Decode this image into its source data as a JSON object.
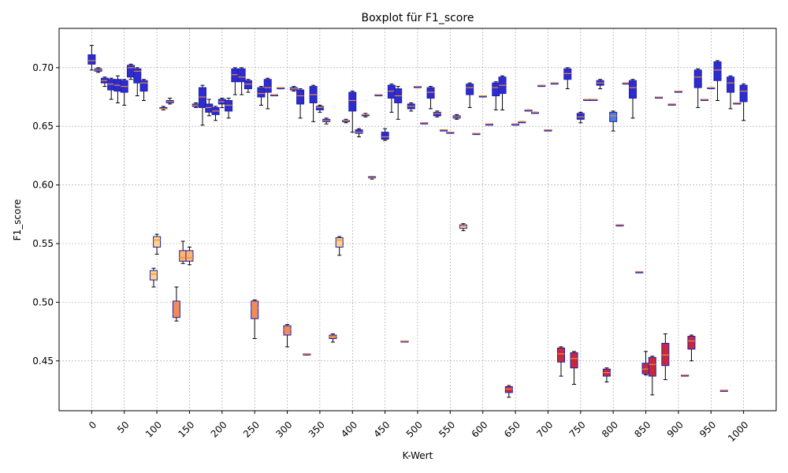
{
  "chart_data": {
    "type": "boxplot",
    "title": "Boxplot für F1_score",
    "xlabel": "K-Wert",
    "ylabel": "F1_score",
    "xlim": [
      -50,
      1050
    ],
    "ylim": [
      0.4075,
      0.7335
    ],
    "grid": true,
    "x_ticks": [
      "0",
      "50",
      "100",
      "150",
      "200",
      "250",
      "300",
      "350",
      "400",
      "450",
      "500",
      "550",
      "600",
      "650",
      "700",
      "750",
      "800",
      "850",
      "900",
      "950",
      "1000"
    ],
    "y_ticks": [
      "0.45",
      "0.50",
      "0.55",
      "0.60",
      "0.65",
      "0.70"
    ],
    "boxes": [
      {
        "k": 0,
        "wl": 0.698,
        "q1": 0.703,
        "med": 0.706,
        "q3": 0.711,
        "wh": 0.719,
        "color": "#2c2ccf"
      },
      {
        "k": 10,
        "wl": 0.696,
        "q1": 0.697,
        "med": 0.698,
        "q3": 0.699,
        "wh": 0.7,
        "color": "#2c2ccf"
      },
      {
        "k": 20,
        "wl": 0.684,
        "q1": 0.687,
        "med": 0.689,
        "q3": 0.691,
        "wh": 0.692,
        "color": "#2c2ccf"
      },
      {
        "k": 30,
        "wl": 0.673,
        "q1": 0.681,
        "med": 0.686,
        "q3": 0.69,
        "wh": 0.691,
        "color": "#2c2ccf"
      },
      {
        "k": 40,
        "wl": 0.67,
        "q1": 0.68,
        "med": 0.685,
        "q3": 0.69,
        "wh": 0.693,
        "color": "#2c2ccf"
      },
      {
        "k": 50,
        "wl": 0.668,
        "q1": 0.679,
        "med": 0.684,
        "q3": 0.689,
        "wh": 0.69,
        "color": "#2c2ccf"
      },
      {
        "k": 60,
        "wl": 0.69,
        "q1": 0.692,
        "med": 0.7,
        "q3": 0.702,
        "wh": 0.703,
        "color": "#2c2ccf"
      },
      {
        "k": 70,
        "wl": 0.676,
        "q1": 0.687,
        "med": 0.697,
        "q3": 0.699,
        "wh": 0.7,
        "color": "#2c2ccf"
      },
      {
        "k": 80,
        "wl": 0.672,
        "q1": 0.68,
        "med": 0.687,
        "q3": 0.689,
        "wh": 0.69,
        "color": "#2c2ccf"
      },
      {
        "k": 95,
        "wl": 0.513,
        "q1": 0.519,
        "med": 0.524,
        "q3": 0.527,
        "wh": 0.529,
        "color": "#ffd28a"
      },
      {
        "k": 100,
        "wl": 0.541,
        "q1": 0.547,
        "med": 0.553,
        "q3": 0.556,
        "wh": 0.558,
        "color": "#ffd28a"
      },
      {
        "k": 110,
        "wl": 0.664,
        "q1": 0.665,
        "med": 0.665,
        "q3": 0.666,
        "wh": 0.667,
        "color": "#2c2ccf"
      },
      {
        "k": 120,
        "wl": 0.669,
        "q1": 0.67,
        "med": 0.671,
        "q3": 0.672,
        "wh": 0.674,
        "color": "#2c2ccf"
      },
      {
        "k": 130,
        "wl": 0.484,
        "q1": 0.487,
        "med": 0.49,
        "q3": 0.501,
        "wh": 0.513,
        "color": "#f28b5b"
      },
      {
        "k": 140,
        "wl": 0.533,
        "q1": 0.535,
        "med": 0.538,
        "q3": 0.544,
        "wh": 0.552,
        "color": "#ffb470"
      },
      {
        "k": 150,
        "wl": 0.532,
        "q1": 0.535,
        "med": 0.538,
        "q3": 0.544,
        "wh": 0.547,
        "color": "#ffb470"
      },
      {
        "k": 160,
        "wl": 0.666,
        "q1": 0.667,
        "med": 0.668,
        "q3": 0.669,
        "wh": 0.67,
        "color": "#2c2ccf"
      },
      {
        "k": 170,
        "wl": 0.651,
        "q1": 0.666,
        "med": 0.675,
        "q3": 0.683,
        "wh": 0.685,
        "color": "#2c2ccf"
      },
      {
        "k": 180,
        "wl": 0.659,
        "q1": 0.662,
        "med": 0.666,
        "q3": 0.669,
        "wh": 0.673,
        "color": "#2c2ccf"
      },
      {
        "k": 190,
        "wl": 0.655,
        "q1": 0.66,
        "med": 0.663,
        "q3": 0.666,
        "wh": 0.667,
        "color": "#2c2ccf"
      },
      {
        "k": 200,
        "wl": 0.666,
        "q1": 0.669,
        "med": 0.671,
        "q3": 0.673,
        "wh": 0.674,
        "color": "#2c2ccf"
      },
      {
        "k": 210,
        "wl": 0.657,
        "q1": 0.663,
        "med": 0.668,
        "q3": 0.672,
        "wh": 0.674,
        "color": "#2c2ccf"
      },
      {
        "k": 220,
        "wl": 0.677,
        "q1": 0.688,
        "med": 0.694,
        "q3": 0.699,
        "wh": 0.7,
        "color": "#2c2ccf"
      },
      {
        "k": 230,
        "wl": 0.677,
        "q1": 0.688,
        "med": 0.692,
        "q3": 0.699,
        "wh": 0.7,
        "color": "#2c2ccf"
      },
      {
        "k": 240,
        "wl": 0.679,
        "q1": 0.682,
        "med": 0.686,
        "q3": 0.689,
        "wh": 0.69,
        "color": "#2c2ccf"
      },
      {
        "k": 250,
        "wl": 0.469,
        "q1": 0.486,
        "med": 0.495,
        "q3": 0.501,
        "wh": 0.502,
        "color": "#f28b5b"
      },
      {
        "k": 260,
        "wl": 0.668,
        "q1": 0.675,
        "med": 0.678,
        "q3": 0.683,
        "wh": 0.684,
        "color": "#2c2ccf"
      },
      {
        "k": 270,
        "wl": 0.665,
        "q1": 0.679,
        "med": 0.683,
        "q3": 0.69,
        "wh": 0.691,
        "color": "#2c2ccf"
      },
      {
        "k": 280,
        "wl": 0.676,
        "q1": 0.676,
        "med": 0.677,
        "q3": 0.677,
        "wh": 0.677,
        "color": "#2c2ccf"
      },
      {
        "k": 290,
        "wl": 0.682,
        "q1": 0.682,
        "med": 0.683,
        "q3": 0.683,
        "wh": 0.683,
        "color": "#2c2ccf"
      },
      {
        "k": 300,
        "wl": 0.462,
        "q1": 0.472,
        "med": 0.477,
        "q3": 0.48,
        "wh": 0.481,
        "color": "#f28b5b"
      },
      {
        "k": 310,
        "wl": 0.68,
        "q1": 0.681,
        "med": 0.682,
        "q3": 0.683,
        "wh": 0.684,
        "color": "#2c2ccf"
      },
      {
        "k": 320,
        "wl": 0.657,
        "q1": 0.669,
        "med": 0.676,
        "q3": 0.681,
        "wh": 0.682,
        "color": "#2c2ccf"
      },
      {
        "k": 330,
        "wl": 0.455,
        "q1": 0.455,
        "med": 0.456,
        "q3": 0.456,
        "wh": 0.456,
        "color": "#f28b5b"
      },
      {
        "k": 340,
        "wl": 0.654,
        "q1": 0.67,
        "med": 0.677,
        "q3": 0.684,
        "wh": 0.685,
        "color": "#2c2ccf"
      },
      {
        "k": 350,
        "wl": 0.662,
        "q1": 0.664,
        "med": 0.666,
        "q3": 0.667,
        "wh": 0.668,
        "color": "#2c2ccf"
      },
      {
        "k": 360,
        "wl": 0.652,
        "q1": 0.654,
        "med": 0.655,
        "q3": 0.656,
        "wh": 0.657,
        "color": "#2c2ccf"
      },
      {
        "k": 370,
        "wl": 0.466,
        "q1": 0.469,
        "med": 0.471,
        "q3": 0.472,
        "wh": 0.473,
        "color": "#f28b5b"
      },
      {
        "k": 380,
        "wl": 0.54,
        "q1": 0.547,
        "med": 0.553,
        "q3": 0.555,
        "wh": 0.556,
        "color": "#ffd28a"
      },
      {
        "k": 390,
        "wl": 0.653,
        "q1": 0.654,
        "med": 0.655,
        "q3": 0.655,
        "wh": 0.656,
        "color": "#2c2ccf"
      },
      {
        "k": 400,
        "wl": 0.645,
        "q1": 0.663,
        "med": 0.672,
        "q3": 0.679,
        "wh": 0.68,
        "color": "#2c2ccf"
      },
      {
        "k": 410,
        "wl": 0.641,
        "q1": 0.644,
        "med": 0.645,
        "q3": 0.647,
        "wh": 0.648,
        "color": "#2c2ccf"
      },
      {
        "k": 420,
        "wl": 0.658,
        "q1": 0.659,
        "med": 0.66,
        "q3": 0.66,
        "wh": 0.661,
        "color": "#2c2ccf"
      },
      {
        "k": 430,
        "wl": 0.605,
        "q1": 0.606,
        "med": 0.606,
        "q3": 0.607,
        "wh": 0.607,
        "color": "#2c2ccf"
      },
      {
        "k": 440,
        "wl": 0.676,
        "q1": 0.676,
        "med": 0.677,
        "q3": 0.677,
        "wh": 0.677,
        "color": "#2c2ccf"
      },
      {
        "k": 450,
        "wl": 0.638,
        "q1": 0.639,
        "med": 0.641,
        "q3": 0.645,
        "wh": 0.648,
        "color": "#2c2ccf"
      },
      {
        "k": 460,
        "wl": 0.662,
        "q1": 0.674,
        "med": 0.68,
        "q3": 0.685,
        "wh": 0.686,
        "color": "#2c2ccf"
      },
      {
        "k": 470,
        "wl": 0.656,
        "q1": 0.67,
        "med": 0.676,
        "q3": 0.682,
        "wh": 0.684,
        "color": "#2c2ccf"
      },
      {
        "k": 480,
        "wl": 0.467,
        "q1": 0.467,
        "med": 0.467,
        "q3": 0.467,
        "wh": 0.467,
        "color": "#f28b5b"
      },
      {
        "k": 490,
        "wl": 0.663,
        "q1": 0.665,
        "med": 0.667,
        "q3": 0.669,
        "wh": 0.67,
        "color": "#2c2ccf"
      },
      {
        "k": 500,
        "wl": 0.684,
        "q1": 0.684,
        "med": 0.684,
        "q3": 0.684,
        "wh": 0.684,
        "color": "#2c2ccf"
      },
      {
        "k": 510,
        "wl": 0.653,
        "q1": 0.653,
        "med": 0.653,
        "q3": 0.653,
        "wh": 0.653,
        "color": "#2c2ccf"
      },
      {
        "k": 520,
        "wl": 0.665,
        "q1": 0.674,
        "med": 0.679,
        "q3": 0.683,
        "wh": 0.684,
        "color": "#2c2ccf"
      },
      {
        "k": 530,
        "wl": 0.658,
        "q1": 0.659,
        "med": 0.661,
        "q3": 0.662,
        "wh": 0.663,
        "color": "#2c2ccf"
      },
      {
        "k": 540,
        "wl": 0.647,
        "q1": 0.647,
        "med": 0.647,
        "q3": 0.647,
        "wh": 0.647,
        "color": "#2c2ccf"
      },
      {
        "k": 550,
        "wl": 0.645,
        "q1": 0.645,
        "med": 0.645,
        "q3": 0.645,
        "wh": 0.645,
        "color": "#2c2ccf"
      },
      {
        "k": 560,
        "wl": 0.656,
        "q1": 0.657,
        "med": 0.658,
        "q3": 0.659,
        "wh": 0.66,
        "color": "#2c2ccf"
      },
      {
        "k": 570,
        "wl": 0.561,
        "q1": 0.563,
        "med": 0.565,
        "q3": 0.566,
        "wh": 0.567,
        "color": "#ffd28a"
      },
      {
        "k": 580,
        "wl": 0.666,
        "q1": 0.677,
        "med": 0.683,
        "q3": 0.686,
        "wh": 0.687,
        "color": "#2c2ccf"
      },
      {
        "k": 590,
        "wl": 0.644,
        "q1": 0.644,
        "med": 0.644,
        "q3": 0.644,
        "wh": 0.644,
        "color": "#2c2ccf"
      },
      {
        "k": 600,
        "wl": 0.676,
        "q1": 0.676,
        "med": 0.676,
        "q3": 0.676,
        "wh": 0.676,
        "color": "#2c2ccf"
      },
      {
        "k": 610,
        "wl": 0.652,
        "q1": 0.652,
        "med": 0.652,
        "q3": 0.652,
        "wh": 0.652,
        "color": "#2c2ccf"
      },
      {
        "k": 620,
        "wl": 0.664,
        "q1": 0.676,
        "med": 0.683,
        "q3": 0.687,
        "wh": 0.688,
        "color": "#2c2ccf"
      },
      {
        "k": 630,
        "wl": 0.664,
        "q1": 0.678,
        "med": 0.685,
        "q3": 0.692,
        "wh": 0.693,
        "color": "#2c2ccf"
      },
      {
        "k": 640,
        "wl": 0.419,
        "q1": 0.423,
        "med": 0.426,
        "q3": 0.428,
        "wh": 0.429,
        "color": "#c8283c"
      },
      {
        "k": 650,
        "wl": 0.652,
        "q1": 0.652,
        "med": 0.652,
        "q3": 0.652,
        "wh": 0.652,
        "color": "#2c2ccf"
      },
      {
        "k": 660,
        "wl": 0.654,
        "q1": 0.654,
        "med": 0.654,
        "q3": 0.654,
        "wh": 0.654,
        "color": "#2c2ccf"
      },
      {
        "k": 670,
        "wl": 0.664,
        "q1": 0.664,
        "med": 0.664,
        "q3": 0.664,
        "wh": 0.664,
        "color": "#2c2ccf"
      },
      {
        "k": 680,
        "wl": 0.662,
        "q1": 0.662,
        "med": 0.662,
        "q3": 0.662,
        "wh": 0.662,
        "color": "#2c2ccf"
      },
      {
        "k": 690,
        "wl": 0.685,
        "q1": 0.685,
        "med": 0.685,
        "q3": 0.685,
        "wh": 0.685,
        "color": "#2c2ccf"
      },
      {
        "k": 700,
        "wl": 0.647,
        "q1": 0.647,
        "med": 0.647,
        "q3": 0.647,
        "wh": 0.647,
        "color": "#2c2ccf"
      },
      {
        "k": 710,
        "wl": 0.687,
        "q1": 0.687,
        "med": 0.687,
        "q3": 0.687,
        "wh": 0.687,
        "color": "#2c2ccf"
      },
      {
        "k": 720,
        "wl": 0.437,
        "q1": 0.449,
        "med": 0.456,
        "q3": 0.461,
        "wh": 0.462,
        "color": "#c8283c"
      },
      {
        "k": 730,
        "wl": 0.682,
        "q1": 0.69,
        "med": 0.695,
        "q3": 0.699,
        "wh": 0.7,
        "color": "#2c2ccf"
      },
      {
        "k": 740,
        "wl": 0.43,
        "q1": 0.444,
        "med": 0.452,
        "q3": 0.457,
        "wh": 0.458,
        "color": "#c8283c"
      },
      {
        "k": 750,
        "wl": 0.653,
        "q1": 0.656,
        "med": 0.658,
        "q3": 0.661,
        "wh": 0.662,
        "color": "#2c2ccf"
      },
      {
        "k": 760,
        "wl": 0.673,
        "q1": 0.673,
        "med": 0.673,
        "q3": 0.673,
        "wh": 0.673,
        "color": "#2c2ccf"
      },
      {
        "k": 770,
        "wl": 0.673,
        "q1": 0.673,
        "med": 0.673,
        "q3": 0.673,
        "wh": 0.673,
        "color": "#2c2ccf"
      },
      {
        "k": 780,
        "wl": 0.682,
        "q1": 0.685,
        "med": 0.687,
        "q3": 0.689,
        "wh": 0.69,
        "color": "#2c2ccf"
      },
      {
        "k": 790,
        "wl": 0.432,
        "q1": 0.437,
        "med": 0.44,
        "q3": 0.443,
        "wh": 0.444,
        "color": "#c8283c"
      },
      {
        "k": 800,
        "wl": 0.646,
        "q1": 0.654,
        "med": 0.659,
        "q3": 0.662,
        "wh": 0.663,
        "color": "#4a7fe0"
      },
      {
        "k": 810,
        "wl": 0.566,
        "q1": 0.566,
        "med": 0.566,
        "q3": 0.566,
        "wh": 0.566,
        "color": "#2c2ccf"
      },
      {
        "k": 820,
        "wl": 0.687,
        "q1": 0.687,
        "med": 0.687,
        "q3": 0.687,
        "wh": 0.687,
        "color": "#2c2ccf"
      },
      {
        "k": 830,
        "wl": 0.657,
        "q1": 0.674,
        "med": 0.683,
        "q3": 0.689,
        "wh": 0.69,
        "color": "#2c2ccf"
      },
      {
        "k": 840,
        "wl": 0.526,
        "q1": 0.526,
        "med": 0.526,
        "q3": 0.526,
        "wh": 0.526,
        "color": "#2c2ccf"
      },
      {
        "k": 850,
        "wl": 0.438,
        "q1": 0.439,
        "med": 0.443,
        "q3": 0.448,
        "wh": 0.458,
        "color": "#c8283c"
      },
      {
        "k": 860,
        "wl": 0.421,
        "q1": 0.437,
        "med": 0.447,
        "q3": 0.453,
        "wh": 0.454,
        "color": "#c8283c"
      },
      {
        "k": 870,
        "wl": 0.675,
        "q1": 0.675,
        "med": 0.675,
        "q3": 0.675,
        "wh": 0.675,
        "color": "#2c2ccf"
      },
      {
        "k": 880,
        "wl": 0.434,
        "q1": 0.446,
        "med": 0.455,
        "q3": 0.465,
        "wh": 0.473,
        "color": "#c8283c"
      },
      {
        "k": 890,
        "wl": 0.669,
        "q1": 0.669,
        "med": 0.669,
        "q3": 0.669,
        "wh": 0.669,
        "color": "#2c2ccf"
      },
      {
        "k": 900,
        "wl": 0.68,
        "q1": 0.68,
        "med": 0.68,
        "q3": 0.68,
        "wh": 0.68,
        "color": "#2c2ccf"
      },
      {
        "k": 910,
        "wl": 0.438,
        "q1": 0.438,
        "med": 0.438,
        "q3": 0.438,
        "wh": 0.438,
        "color": "#c8283c"
      },
      {
        "k": 920,
        "wl": 0.45,
        "q1": 0.46,
        "med": 0.467,
        "q3": 0.471,
        "wh": 0.472,
        "color": "#c8283c"
      },
      {
        "k": 930,
        "wl": 0.666,
        "q1": 0.683,
        "med": 0.692,
        "q3": 0.698,
        "wh": 0.699,
        "color": "#2c2ccf"
      },
      {
        "k": 940,
        "wl": 0.673,
        "q1": 0.673,
        "med": 0.673,
        "q3": 0.673,
        "wh": 0.673,
        "color": "#2c2ccf"
      },
      {
        "k": 950,
        "wl": 0.683,
        "q1": 0.683,
        "med": 0.683,
        "q3": 0.683,
        "wh": 0.683,
        "color": "#2c2ccf"
      },
      {
        "k": 960,
        "wl": 0.672,
        "q1": 0.689,
        "med": 0.698,
        "q3": 0.705,
        "wh": 0.706,
        "color": "#2c2ccf"
      },
      {
        "k": 970,
        "wl": 0.425,
        "q1": 0.425,
        "med": 0.425,
        "q3": 0.425,
        "wh": 0.425,
        "color": "#c8283c"
      },
      {
        "k": 980,
        "wl": 0.665,
        "q1": 0.679,
        "med": 0.687,
        "q3": 0.692,
        "wh": 0.693,
        "color": "#2c2ccf"
      },
      {
        "k": 990,
        "wl": 0.67,
        "q1": 0.67,
        "med": 0.67,
        "q3": 0.67,
        "wh": 0.67,
        "color": "#2c2ccf"
      },
      {
        "k": 1000,
        "wl": 0.655,
        "q1": 0.671,
        "med": 0.68,
        "q3": 0.685,
        "wh": 0.686,
        "color": "#2c2ccf"
      }
    ],
    "colors": {
      "box_edge": "#1f1fb0",
      "median": "#f08a3c",
      "whisker": "#000000",
      "grid": "#9a9a9a"
    }
  }
}
